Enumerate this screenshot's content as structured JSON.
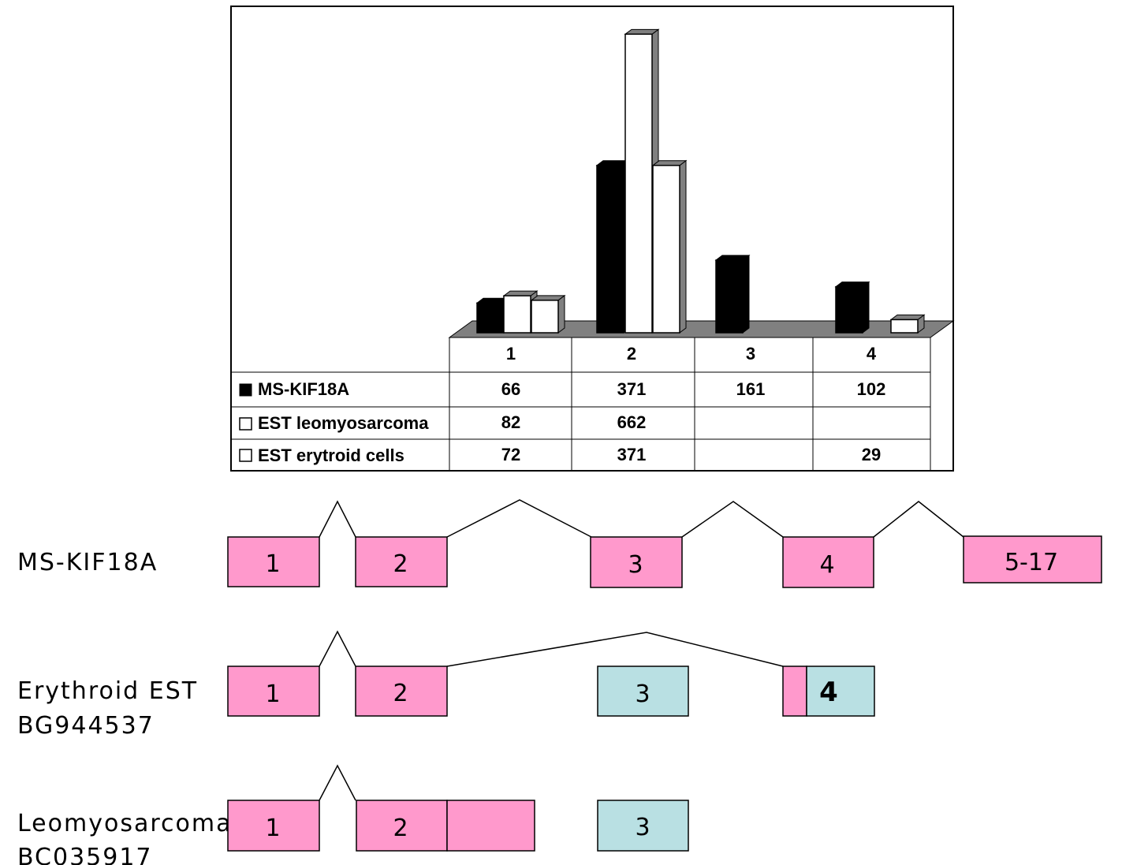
{
  "chart_data": {
    "type": "bar",
    "categories": [
      "1",
      "2",
      "3",
      "4"
    ],
    "series": [
      {
        "name": "MS-KIF18A",
        "values": [
          66,
          371,
          161,
          102
        ],
        "color": "#000000"
      },
      {
        "name": "EST leomyosarcoma",
        "values": [
          82,
          662,
          null,
          null
        ],
        "color": "#ffffff"
      },
      {
        "name": "EST erytroid cells",
        "values": [
          72,
          371,
          null,
          29
        ],
        "color": "#ffffff"
      }
    ],
    "legend_placement": "data-table",
    "grid": false,
    "three_d": true,
    "floor_color": "#808080",
    "title": "",
    "xlabel": "",
    "ylabel": ""
  },
  "tracks": [
    {
      "label_lines": [
        "MS-KIF18A"
      ],
      "exons": [
        {
          "label": "1",
          "kind": "pink"
        },
        {
          "label": "2",
          "kind": "pink"
        },
        {
          "label": "3",
          "kind": "pink"
        },
        {
          "label": "4",
          "kind": "pink"
        },
        {
          "label": "5-17",
          "kind": "pink"
        }
      ]
    },
    {
      "label_lines": [
        "Erythroid EST",
        "BG944537"
      ],
      "exons": [
        {
          "label": "1",
          "kind": "pink"
        },
        {
          "label": "2",
          "kind": "pink"
        },
        {
          "label": "3",
          "kind": "teal"
        },
        {
          "label": "",
          "kind": "pink"
        },
        {
          "label": "4",
          "kind": "teal"
        }
      ]
    },
    {
      "label_lines": [
        "Leomyosarcoma",
        "BC035917"
      ],
      "exons": [
        {
          "label": "1",
          "kind": "pink"
        },
        {
          "label": "2",
          "kind": "pink"
        },
        {
          "label": "",
          "kind": "pink"
        },
        {
          "label": "3",
          "kind": "teal"
        }
      ]
    }
  ],
  "colors": {
    "pink_exon": "#ff99cc",
    "teal_exon": "#b9e0e3"
  }
}
